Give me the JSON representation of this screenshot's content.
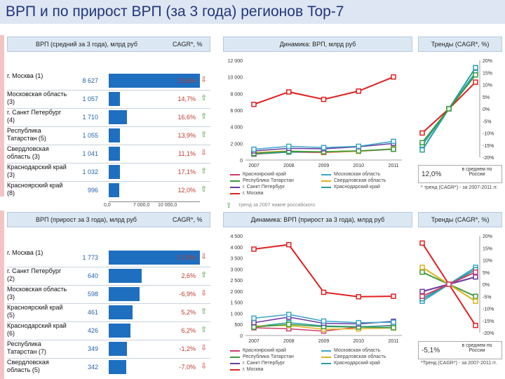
{
  "page_title": "ВРП и по прирост ВРП (за 3 года) регионов Top-7",
  "colors": {
    "up": "#3a9a3a",
    "down": "#d23c2c",
    "bar": "#1e6fc0",
    "header": "#dbe8f4"
  },
  "top_table": {
    "header_left": "ВРП (средний за 3 года), млрд руб",
    "header_right": "CAGR*, %",
    "axis_ticks": [
      "0,0",
      "7 000,0",
      "10 000,0"
    ],
    "rows": [
      {
        "region": "г. Москва (1)",
        "value": "8 627",
        "num": 8627,
        "cagr": "10,6%",
        "dir": "down"
      },
      {
        "region": "Московская область (3)",
        "value": "1 057",
        "num": 1057,
        "cagr": "14,7%",
        "dir": "up"
      },
      {
        "region": "г. Санкт Петербург (4)",
        "value": "1 710",
        "num": 1710,
        "cagr": "16,6%",
        "dir": "up"
      },
      {
        "region": "Республика Татарстан (5)",
        "value": "1 055",
        "num": 1055,
        "cagr": "13,9%",
        "dir": "up"
      },
      {
        "region": "Свердловская область (3)",
        "value": "1 041",
        "num": 1041,
        "cagr": "11,1%",
        "dir": "down"
      },
      {
        "region": "Краснодарский край (3)",
        "value": "1 032",
        "num": 1032,
        "cagr": "17,1%",
        "dir": "up"
      },
      {
        "region": "Красноярский край (8)",
        "value": "996",
        "num": 996,
        "cagr": "12,0%",
        "dir": "up"
      }
    ]
  },
  "bottom_table": {
    "header_left": "ВРП (прирост за 3 года), млрд руб",
    "header_right": "CAGR*, %",
    "rows": [
      {
        "region": "г. Москва (1)",
        "value": "1 773",
        "num": 1773,
        "cagr": "-17,0%",
        "dir": "down"
      },
      {
        "region": "г. Санкт Петербург (2)",
        "value": "640",
        "num": 640,
        "cagr": "2,6%",
        "dir": "up"
      },
      {
        "region": "Московская область (3)",
        "value": "598",
        "num": 598,
        "cagr": "-6,9%",
        "dir": "down"
      },
      {
        "region": "Красноярский край (5)",
        "value": "461",
        "num": 461,
        "cagr": "5,2%",
        "dir": "up"
      },
      {
        "region": "Краснодарский край (6)",
        "value": "426",
        "num": 426,
        "cagr": "6,2%",
        "dir": "up"
      },
      {
        "region": "Республика Татарстан (7)",
        "value": "349",
        "num": 349,
        "cagr": "-1,2%",
        "dir": "down"
      },
      {
        "region": "Свердловская область (5)",
        "value": "342",
        "num": 342,
        "cagr": "-7,0%",
        "dir": "down"
      }
    ]
  },
  "top_dynamics_title": "Динамика: ВРП, млрд руб",
  "bottom_dynamics_title": "Динамика: ВРП (прирост за 3 года), млрд руб",
  "top_trend_title": "Тренды (CAGR*, %)",
  "bottom_trend_title": "Тренды (CAGR*, %)",
  "legend": [
    {
      "name": "Красноярский край",
      "color": "#d23c6c"
    },
    {
      "name": "Московская область",
      "color": "#3aa4c8"
    },
    {
      "name": "Республика Татарстан",
      "color": "#3a9a3a"
    },
    {
      "name": "Свердловская область",
      "color": "#e0b020"
    },
    {
      "name": "г. Санкт Петербург",
      "color": "#6a3aa0"
    },
    {
      "name": "Краснодарский край",
      "color": "#28a0a0"
    },
    {
      "name": "г. Москва",
      "color": "#e02020"
    }
  ],
  "top_avg_value": "12,0%",
  "top_avg_text": "в среднем по России",
  "top_note": "* тренд (CAGR*) - за 2007-2011 гг.",
  "top_footer": "тренд за 2007 нижне российского",
  "bottom_avg_value": "-5,1%",
  "bottom_avg_text": "в среднем по России",
  "bottom_note": "*Тренд (CAGR*) - за 2007-2011 гг.",
  "chart_data": [
    {
      "type": "line",
      "title": "Динамика: ВРП, млрд руб",
      "x": [
        "2007",
        "2008",
        "2009",
        "2010",
        "2011"
      ],
      "ylim": [
        0,
        12000
      ],
      "yticks": [
        "0",
        "2 000",
        "4 000",
        "6 000",
        "8 000",
        "10 000",
        "12 000"
      ],
      "series": [
        {
          "name": "г. Москва",
          "color": "#e02020",
          "values": [
            6700,
            8200,
            7300,
            8300,
            10000
          ]
        },
        {
          "name": "Московская область",
          "color": "#3aa4c8",
          "values": [
            1300,
            1650,
            1500,
            1650,
            2250
          ]
        },
        {
          "name": "г. Санкт Петербург",
          "color": "#6a3aa0",
          "values": [
            1100,
            1400,
            1350,
            1600,
            2000
          ]
        },
        {
          "name": "Республика Татарстан",
          "color": "#3a9a3a",
          "values": [
            800,
            1050,
            1000,
            1100,
            1300
          ]
        },
        {
          "name": "Свердловская область",
          "color": "#e0b020",
          "values": [
            900,
            1100,
            950,
            1050,
            1350
          ]
        },
        {
          "name": "Краснодарский край",
          "color": "#28a0a0",
          "values": [
            750,
            950,
            1000,
            1100,
            1350
          ]
        },
        {
          "name": "Красноярский край",
          "color": "#d23c6c",
          "values": [
            700,
            950,
            900,
            1050,
            1300
          ]
        }
      ]
    },
    {
      "type": "line",
      "title": "Динамика: ВРП (прирост за 3 года), млрд руб",
      "x": [
        "2007",
        "2008",
        "2009",
        "2010",
        "2011"
      ],
      "ylim": [
        0,
        4500
      ],
      "yticks": [
        "0",
        "500",
        "1 000",
        "1 500",
        "2 000",
        "2 500",
        "3 000",
        "3 500",
        "4 000",
        "4 500"
      ],
      "series": [
        {
          "name": "г. Москва",
          "color": "#e02020",
          "values": [
            3900,
            4100,
            1950,
            1750,
            1770
          ]
        },
        {
          "name": "Московская область",
          "color": "#3aa4c8",
          "values": [
            780,
            950,
            650,
            580,
            600
          ]
        },
        {
          "name": "г. Санкт Петербург",
          "color": "#6a3aa0",
          "values": [
            580,
            830,
            550,
            520,
            640
          ]
        },
        {
          "name": "Республика Татарстан",
          "color": "#3a9a3a",
          "values": [
            380,
            500,
            400,
            380,
            350
          ]
        },
        {
          "name": "Свердловская область",
          "color": "#e0b020",
          "values": [
            430,
            450,
            280,
            300,
            340
          ]
        },
        {
          "name": "Краснодарский край",
          "color": "#28a0a0",
          "values": [
            400,
            580,
            430,
            400,
            430
          ]
        },
        {
          "name": "Красноярский край",
          "color": "#d23c6c",
          "values": [
            350,
            300,
            200,
            380,
            460
          ]
        }
      ]
    },
    {
      "type": "line",
      "title": "Тренды (CAGR*, %)",
      "ylim": [
        -20,
        20
      ],
      "yticks": [
        "20%",
        "15%",
        "10%",
        "5%",
        "0%",
        "-5%",
        "-10%",
        "-15%",
        "-20%"
      ],
      "series": [
        {
          "name": "г. Москва",
          "color": "#e02020",
          "values": [
            -10,
            0,
            11
          ]
        },
        {
          "name": "Московская область",
          "color": "#3aa4c8",
          "values": [
            -15,
            0,
            15
          ]
        },
        {
          "name": "Краснодарский край",
          "color": "#28a0a0",
          "values": [
            -17,
            0,
            17
          ]
        },
        {
          "name": "Республика Татарстан",
          "color": "#3a9a3a",
          "values": [
            -14,
            0,
            14
          ]
        }
      ]
    },
    {
      "type": "line",
      "title": "Тренды (CAGR*, %)",
      "ylim": [
        -20,
        20
      ],
      "yticks": [
        "20%",
        "15%",
        "10%",
        "5%",
        "0%",
        "-5%",
        "-10%",
        "-15%",
        "-20%"
      ],
      "series": [
        {
          "name": "г. Москва",
          "color": "#e02020",
          "values": [
            17,
            0,
            -17
          ]
        },
        {
          "name": "Московская область",
          "color": "#3aa4c8",
          "values": [
            -7,
            0,
            7
          ]
        },
        {
          "name": "г. Санкт Петербург",
          "color": "#6a3aa0",
          "values": [
            -3,
            0,
            3
          ]
        },
        {
          "name": "Республика Татарстан",
          "color": "#3a9a3a",
          "values": [
            5,
            0,
            -5
          ]
        },
        {
          "name": "Свердловская область",
          "color": "#e0b020",
          "values": [
            7,
            0,
            -7
          ]
        },
        {
          "name": "Краснодарский край",
          "color": "#28a0a0",
          "values": [
            -6,
            0,
            6
          ]
        },
        {
          "name": "Красноярский край",
          "color": "#d23c6c",
          "values": [
            -5,
            0,
            5
          ]
        }
      ]
    }
  ]
}
